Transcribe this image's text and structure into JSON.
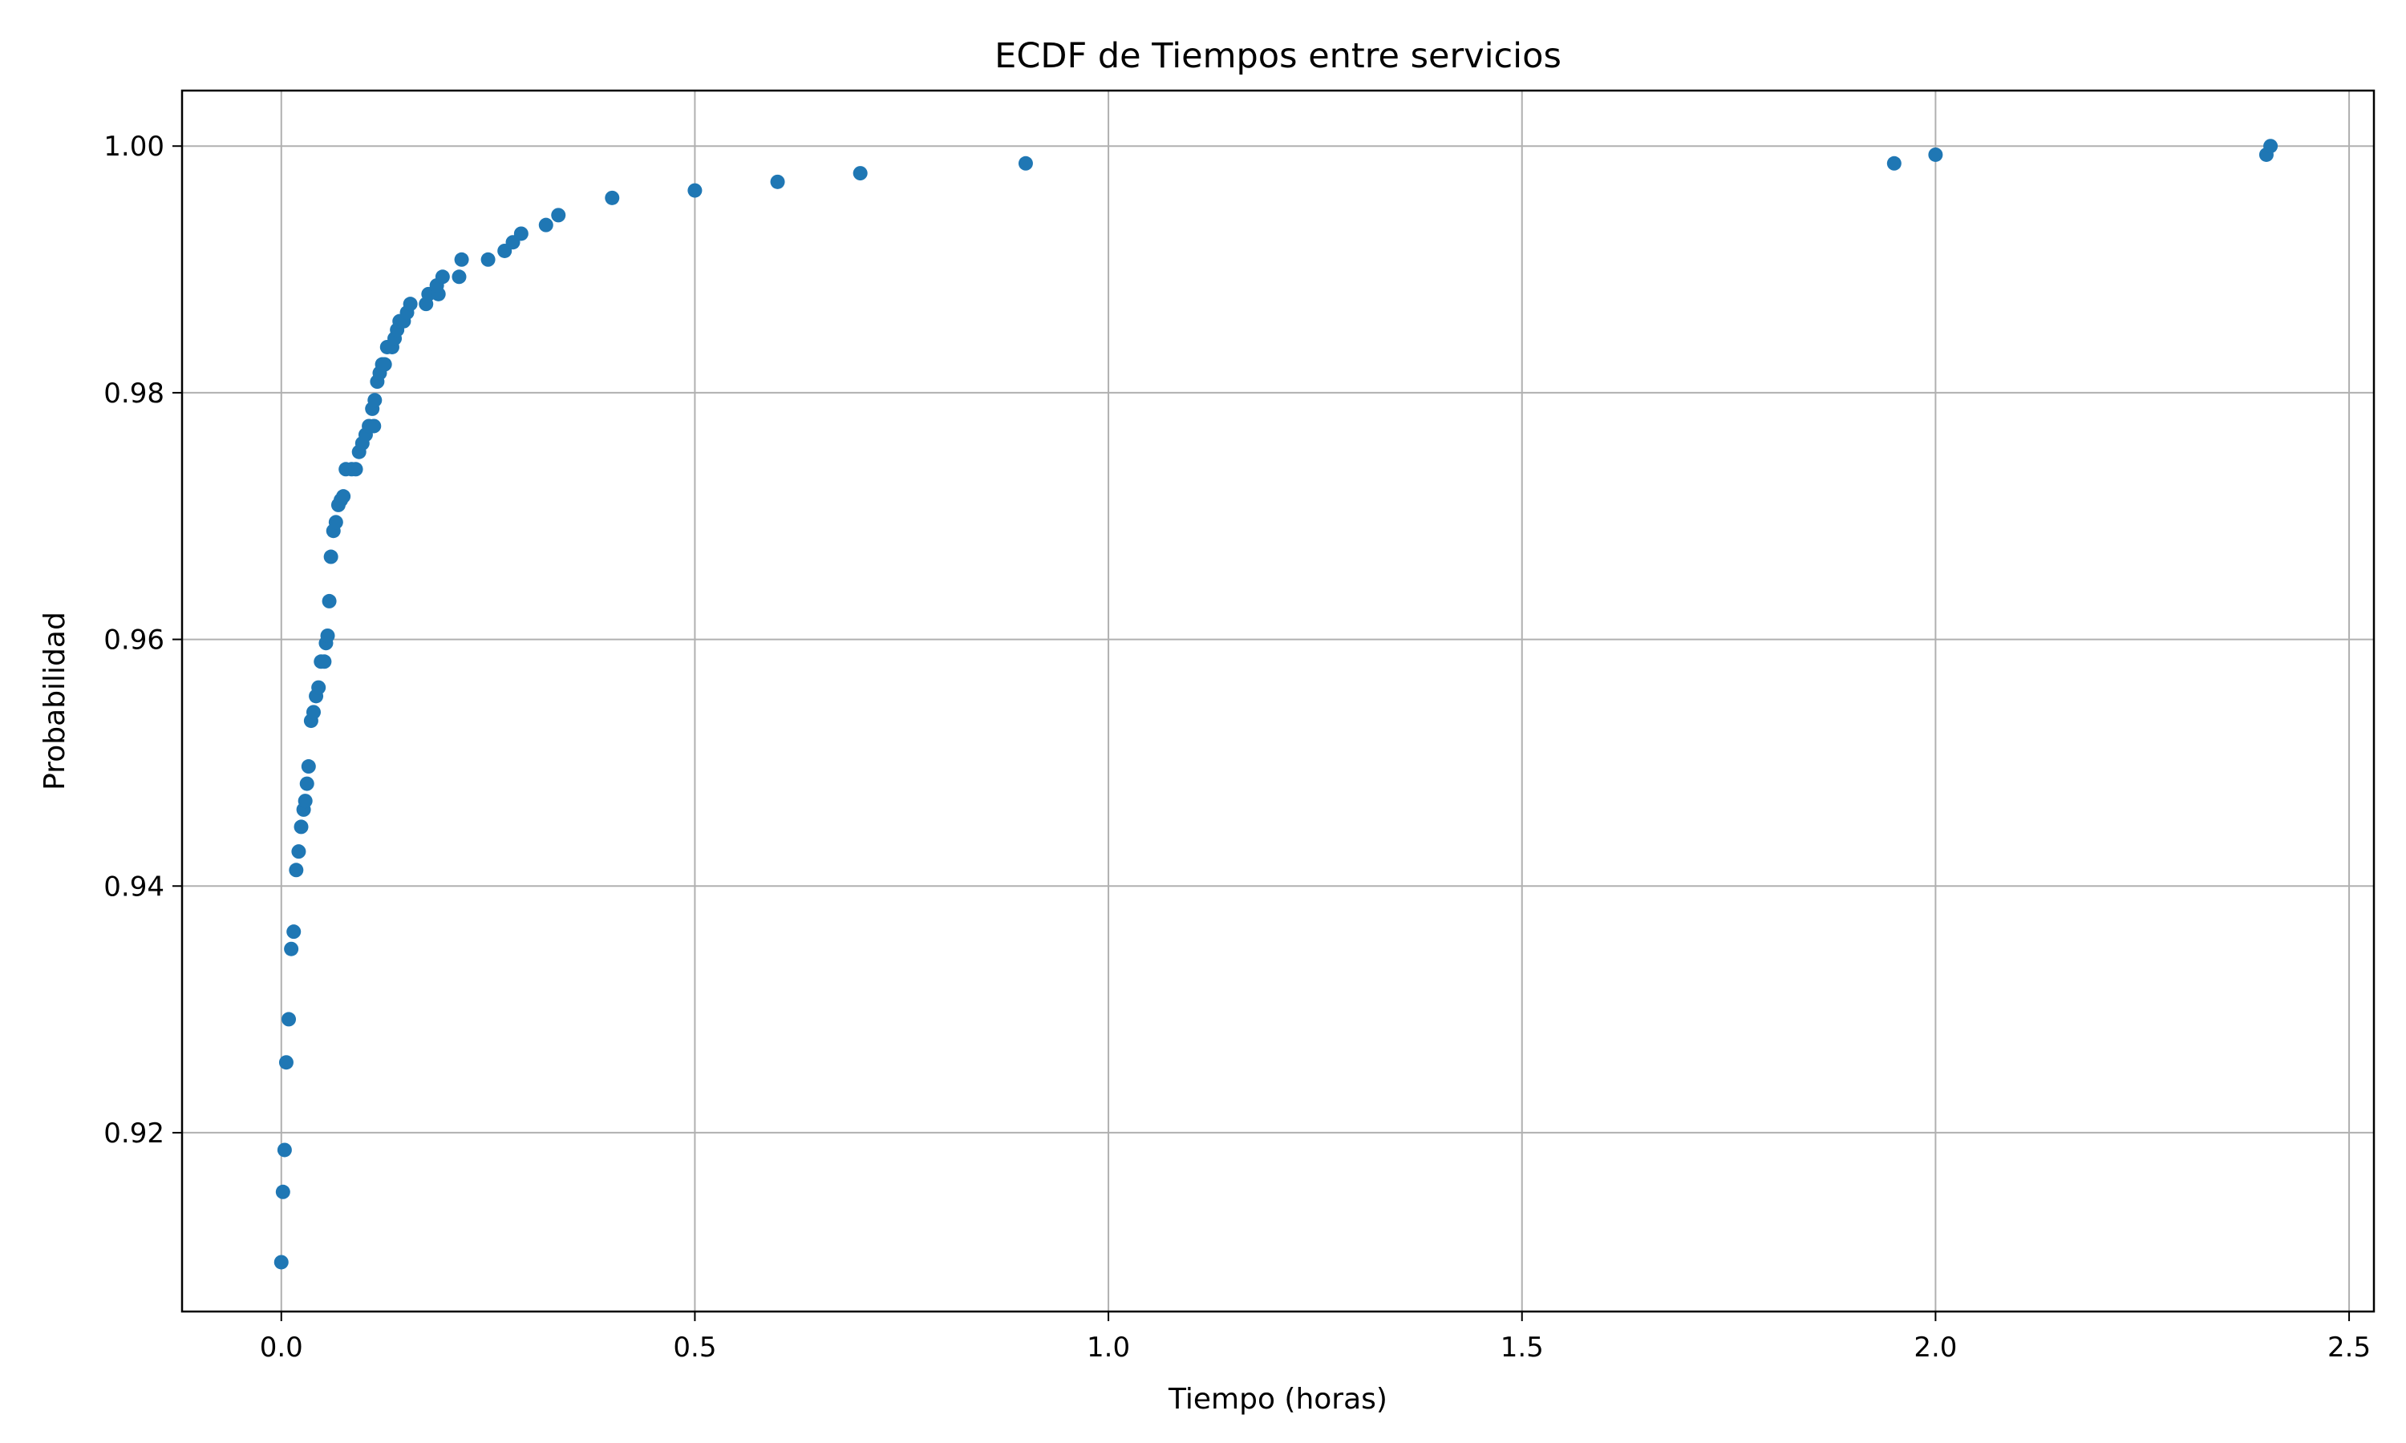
{
  "chart_data": {
    "type": "scatter",
    "title": "ECDF de Tiempos entre servicios",
    "xlabel": "Tiempo (horas)",
    "ylabel": "Probabilidad",
    "xlim": [
      -0.12,
      2.53
    ],
    "ylim": [
      0.9055,
      1.0045
    ],
    "x_ticks": [
      0.0,
      0.5,
      1.0,
      1.5,
      2.0,
      2.5
    ],
    "x_tick_labels": [
      "0.0",
      "0.5",
      "1.0",
      "1.5",
      "2.0",
      "2.5"
    ],
    "y_ticks": [
      0.92,
      0.94,
      0.96,
      0.98,
      1.0
    ],
    "y_tick_labels": [
      "0.92",
      "0.94",
      "0.96",
      "0.98",
      "1.00"
    ],
    "grid": true,
    "color": "#1f77b4",
    "points": [
      [
        0.0,
        0.9095
      ],
      [
        0.002,
        0.9152
      ],
      [
        0.004,
        0.9186
      ],
      [
        0.006,
        0.9257
      ],
      [
        0.009,
        0.9292
      ],
      [
        0.012,
        0.9349
      ],
      [
        0.015,
        0.9363
      ],
      [
        0.018,
        0.9413
      ],
      [
        0.021,
        0.9428
      ],
      [
        0.024,
        0.9448
      ],
      [
        0.027,
        0.9462
      ],
      [
        0.029,
        0.9469
      ],
      [
        0.031,
        0.9483
      ],
      [
        0.033,
        0.9497
      ],
      [
        0.036,
        0.9534
      ],
      [
        0.039,
        0.9541
      ],
      [
        0.042,
        0.9554
      ],
      [
        0.045,
        0.9561
      ],
      [
        0.048,
        0.9582
      ],
      [
        0.052,
        0.9582
      ],
      [
        0.054,
        0.9597
      ],
      [
        0.056,
        0.9603
      ],
      [
        0.058,
        0.9631
      ],
      [
        0.06,
        0.9667
      ],
      [
        0.063,
        0.9688
      ],
      [
        0.066,
        0.9695
      ],
      [
        0.069,
        0.9709
      ],
      [
        0.072,
        0.9713
      ],
      [
        0.075,
        0.9716
      ],
      [
        0.078,
        0.9738
      ],
      [
        0.085,
        0.9738
      ],
      [
        0.09,
        0.9738
      ],
      [
        0.094,
        0.9752
      ],
      [
        0.098,
        0.9759
      ],
      [
        0.102,
        0.9766
      ],
      [
        0.106,
        0.9773
      ],
      [
        0.112,
        0.9773
      ],
      [
        0.11,
        0.9787
      ],
      [
        0.113,
        0.9794
      ],
      [
        0.116,
        0.9809
      ],
      [
        0.119,
        0.9816
      ],
      [
        0.122,
        0.9823
      ],
      [
        0.125,
        0.9823
      ],
      [
        0.128,
        0.9837
      ],
      [
        0.134,
        0.9837
      ],
      [
        0.137,
        0.9844
      ],
      [
        0.14,
        0.9851
      ],
      [
        0.143,
        0.9858
      ],
      [
        0.148,
        0.9858
      ],
      [
        0.152,
        0.9865
      ],
      [
        0.156,
        0.9872
      ],
      [
        0.175,
        0.9872
      ],
      [
        0.178,
        0.988
      ],
      [
        0.19,
        0.988
      ],
      [
        0.188,
        0.9887
      ],
      [
        0.195,
        0.9894
      ],
      [
        0.215,
        0.9894
      ],
      [
        0.218,
        0.9908
      ],
      [
        0.25,
        0.9908
      ],
      [
        0.27,
        0.9915
      ],
      [
        0.28,
        0.9922
      ],
      [
        0.29,
        0.9929
      ],
      [
        0.32,
        0.9936
      ],
      [
        0.335,
        0.9944
      ],
      [
        0.4,
        0.9958
      ],
      [
        0.5,
        0.9964
      ],
      [
        0.6,
        0.9971
      ],
      [
        0.7,
        0.9978
      ],
      [
        0.9,
        0.9986
      ],
      [
        1.95,
        0.9986
      ],
      [
        2.0,
        0.9993
      ],
      [
        2.4,
        0.9993
      ],
      [
        2.405,
        1.0
      ]
    ]
  }
}
